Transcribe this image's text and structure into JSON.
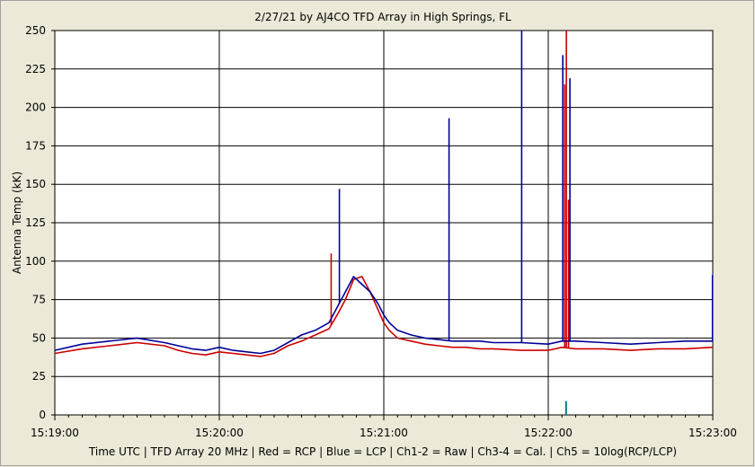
{
  "chart_data": {
    "type": "line",
    "title": "2/27/21  by  AJ4CO TFD Array  in  High Springs, FL",
    "ylabel": "Antenna Temp (kK)",
    "footer": "Time UTC | TFD Array 20 MHz | Red = RCP | Blue = LCP | Ch1-2 = Raw | Ch3-4 = Cal. | Ch5 = 10log(RCP/LCP)",
    "ylim": [
      0,
      250
    ],
    "yticks": [
      0,
      25,
      50,
      75,
      100,
      125,
      150,
      175,
      200,
      225,
      250
    ],
    "xlim_seconds_after_15_19": [
      0,
      240
    ],
    "xticks": [
      {
        "t": 0,
        "label": "15:19:00"
      },
      {
        "t": 60,
        "label": "15:20:00"
      },
      {
        "t": 120,
        "label": "15:21:00"
      },
      {
        "t": 180,
        "label": "15:22:00"
      },
      {
        "t": 240,
        "label": "15:23:00"
      }
    ],
    "grid": true,
    "series": [
      {
        "name": "RCP",
        "color": "#cc0000",
        "x": [
          0,
          10,
          20,
          30,
          40,
          45,
          50,
          55,
          60,
          65,
          70,
          75,
          80,
          85,
          90,
          95,
          100,
          103,
          106,
          109,
          112,
          115,
          118,
          120,
          122,
          125,
          130,
          135,
          140,
          145,
          150,
          155,
          160,
          170,
          180,
          185,
          190,
          200,
          210,
          220,
          230,
          240
        ],
        "y": [
          40,
          43,
          45,
          47,
          45,
          42,
          40,
          39,
          41,
          40,
          39,
          38,
          40,
          45,
          48,
          52,
          56,
          65,
          75,
          88,
          90,
          80,
          68,
          60,
          55,
          50,
          48,
          46,
          45,
          44,
          44,
          43,
          43,
          42,
          42,
          44,
          43,
          43,
          42,
          43,
          43,
          44
        ],
        "spikes": [
          {
            "x": 100.8,
            "y": 105
          },
          {
            "x": 186.0,
            "y": 215
          },
          {
            "x": 186.6,
            "y": 250
          },
          {
            "x": 187.4,
            "y": 140
          }
        ]
      },
      {
        "name": "LCP",
        "color": "#000099",
        "x": [
          0,
          10,
          20,
          30,
          40,
          45,
          50,
          55,
          60,
          65,
          70,
          75,
          80,
          85,
          90,
          95,
          100,
          103,
          106,
          109,
          112,
          115,
          118,
          120,
          122,
          125,
          130,
          135,
          140,
          145,
          150,
          155,
          160,
          170,
          180,
          185,
          190,
          200,
          210,
          220,
          230,
          240
        ],
        "y": [
          42,
          46,
          48,
          50,
          47,
          45,
          43,
          42,
          44,
          42,
          41,
          40,
          42,
          47,
          52,
          55,
          60,
          70,
          80,
          90,
          85,
          80,
          72,
          65,
          60,
          55,
          52,
          50,
          49,
          48,
          48,
          48,
          47,
          47,
          46,
          48,
          48,
          47,
          46,
          47,
          48,
          48
        ],
        "spikes": [
          {
            "x": 103.8,
            "y": 147
          },
          {
            "x": 143.8,
            "y": 193
          },
          {
            "x": 170.3,
            "y": 250
          },
          {
            "x": 185.3,
            "y": 234
          },
          {
            "x": 187.9,
            "y": 219
          },
          {
            "x": 239.9,
            "y": 91
          }
        ]
      },
      {
        "name": "Ch5",
        "color": "#008080",
        "x": [
          186.5
        ],
        "y": [
          9
        ]
      }
    ]
  }
}
